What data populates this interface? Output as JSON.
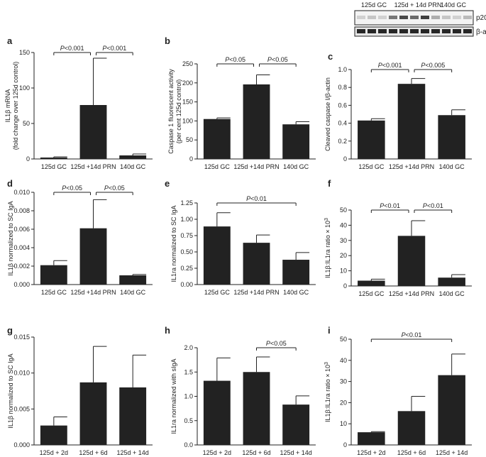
{
  "blot": {
    "lane_labels": [
      "125d GC",
      "125d + 14d PRN",
      "140d GC"
    ],
    "band_labels": [
      "p20",
      "β-actin"
    ]
  },
  "chart_data": [
    {
      "panel": "a",
      "type": "bar",
      "categories": [
        "125d GC",
        "125d +14d PRN",
        "140d GC"
      ],
      "values": [
        2,
        76,
        5
      ],
      "errors": [
        1,
        66,
        2
      ],
      "ylabel": "IL1β mRNA",
      "ylabel2": "(fold change over 125d control)",
      "ylim": [
        0,
        150
      ],
      "yticks": [
        0,
        50,
        100,
        150
      ],
      "tick_labels": [
        "0",
        "50",
        "100",
        "150"
      ],
      "sig": [
        {
          "from": 0,
          "to": 1,
          "label": "P<0.001"
        },
        {
          "from": 1,
          "to": 2,
          "label": "P<0.001"
        }
      ]
    },
    {
      "panel": "b",
      "type": "bar",
      "categories": [
        "125d GC",
        "125d +14d PRN",
        "140d GC"
      ],
      "values": [
        105,
        196,
        91
      ],
      "errors": [
        3,
        25,
        7
      ],
      "ylabel": "Caspase 1 fluorescent activity",
      "ylabel2": "(per cent 125d control)",
      "ylim": [
        0,
        250
      ],
      "yticks": [
        0,
        50,
        100,
        150,
        200,
        250
      ],
      "tick_labels": [
        "0",
        "50",
        "100",
        "150",
        "200",
        "250"
      ],
      "sig": [
        {
          "from": 0,
          "to": 1,
          "label": "P<0.05"
        },
        {
          "from": 1,
          "to": 2,
          "label": "P<0.05"
        }
      ]
    },
    {
      "panel": "c",
      "type": "bar",
      "categories": [
        "125d GC",
        "125d +14d PRN",
        "140d GC"
      ],
      "values": [
        0.43,
        0.84,
        0.49
      ],
      "errors": [
        0.02,
        0.06,
        0.06
      ],
      "ylabel": "Cleaved caspase I/β-actin",
      "ylabel2": "",
      "ylim": [
        0,
        1.0
      ],
      "yticks": [
        0,
        0.2,
        0.4,
        0.6,
        0.8,
        1.0
      ],
      "tick_labels": [
        "0",
        "0.2",
        "0.4",
        "0.6",
        "0.8",
        "1.0"
      ],
      "sig": [
        {
          "from": 0,
          "to": 1,
          "label": "P<0.001"
        },
        {
          "from": 1,
          "to": 2,
          "label": "P<0.005"
        }
      ]
    },
    {
      "panel": "d",
      "type": "bar",
      "categories": [
        "125d GC",
        "125d +14d PRN",
        "140d GC"
      ],
      "values": [
        0.0021,
        0.0061,
        0.001
      ],
      "errors": [
        0.0005,
        0.0031,
        0.0001
      ],
      "ylabel": "IL1β normalized to SC IgA",
      "ylabel2": "",
      "ylim": [
        0,
        0.01
      ],
      "yticks": [
        0,
        0.002,
        0.004,
        0.006,
        0.008,
        0.01
      ],
      "tick_labels": [
        "0.000",
        "0.002",
        "0.004",
        "0.006",
        "0.008",
        "0.010"
      ],
      "sig": [
        {
          "from": 0,
          "to": 1,
          "label": "P<0.05"
        },
        {
          "from": 1,
          "to": 2,
          "label": "P<0.05"
        }
      ]
    },
    {
      "panel": "e",
      "type": "bar",
      "categories": [
        "125d GC",
        "125d +14d PRN",
        "140d GC"
      ],
      "values": [
        0.89,
        0.64,
        0.38
      ],
      "errors": [
        0.21,
        0.12,
        0.11
      ],
      "ylabel": "IL1ra normalized to SC IgA",
      "ylabel2": "",
      "ylim": [
        0,
        1.25
      ],
      "yticks": [
        0,
        0.25,
        0.5,
        0.75,
        1.0,
        1.25
      ],
      "tick_labels": [
        "0.00",
        "0.25",
        "0.50",
        "0.75",
        "1.00",
        "1.25"
      ],
      "sig": [
        {
          "from": 0,
          "to": 2,
          "label": "P<0.01"
        }
      ]
    },
    {
      "panel": "f",
      "type": "bar",
      "categories": [
        "125d GC",
        "125d +14d PRN",
        "140d GC"
      ],
      "values": [
        3.5,
        33,
        5.5
      ],
      "errors": [
        1,
        10,
        2
      ],
      "ylabel": "IL1β:IL1ra ratio × 10",
      "ylabel_sup": "3",
      "ylabel2": "",
      "ylim": [
        0,
        50
      ],
      "yticks": [
        0,
        10,
        20,
        30,
        40,
        50
      ],
      "tick_labels": [
        "0",
        "10",
        "20",
        "30",
        "40",
        "50"
      ],
      "sig": [
        {
          "from": 0,
          "to": 1,
          "label": "P<0.01"
        },
        {
          "from": 1,
          "to": 2,
          "label": "P<0.01"
        }
      ]
    },
    {
      "panel": "g",
      "type": "bar",
      "categories": [
        "125d + 2d",
        "125d + 6d",
        "125d + 14d"
      ],
      "values": [
        0.0027,
        0.0087,
        0.008
      ],
      "errors": [
        0.0012,
        0.005,
        0.0045
      ],
      "ylabel": "IL1β normalized to SC IgA",
      "ylabel2": "",
      "ylim": [
        0,
        0.015
      ],
      "yticks": [
        0,
        0.005,
        0.01,
        0.015
      ],
      "tick_labels": [
        "0.000",
        "0.005",
        "0.010",
        "0.015"
      ],
      "sig": []
    },
    {
      "panel": "h",
      "type": "bar",
      "categories": [
        "125d + 2d",
        "125d + 6d",
        "125d + 14d"
      ],
      "values": [
        1.32,
        1.5,
        0.83
      ],
      "errors": [
        0.47,
        0.31,
        0.18
      ],
      "ylabel": "IL1ra normalized with sIgA",
      "ylabel2": "",
      "ylim": [
        0,
        2.0
      ],
      "yticks": [
        0,
        0.5,
        1.0,
        1.5,
        2.0
      ],
      "tick_labels": [
        "0.0",
        "0.5",
        "1.0",
        "1.5",
        "2.0"
      ],
      "sig": [
        {
          "from": 1,
          "to": 2,
          "label": "P<0.05"
        }
      ]
    },
    {
      "panel": "i",
      "type": "bar",
      "categories": [
        "125d + 2d",
        "125d + 6d",
        "125d + 14d"
      ],
      "values": [
        6,
        16,
        33
      ],
      "errors": [
        0.3,
        7,
        10
      ],
      "ylabel": "IL1β:IL1ra ratio × 10",
      "ylabel_sup": "3",
      "ylabel2": "",
      "ylim": [
        0,
        50
      ],
      "yticks": [
        0,
        10,
        20,
        30,
        40,
        50
      ],
      "tick_labels": [
        "0",
        "10",
        "20",
        "30",
        "40",
        "50"
      ],
      "sig": [
        {
          "from": 0,
          "to": 2,
          "label": "P<0.01"
        }
      ]
    }
  ]
}
